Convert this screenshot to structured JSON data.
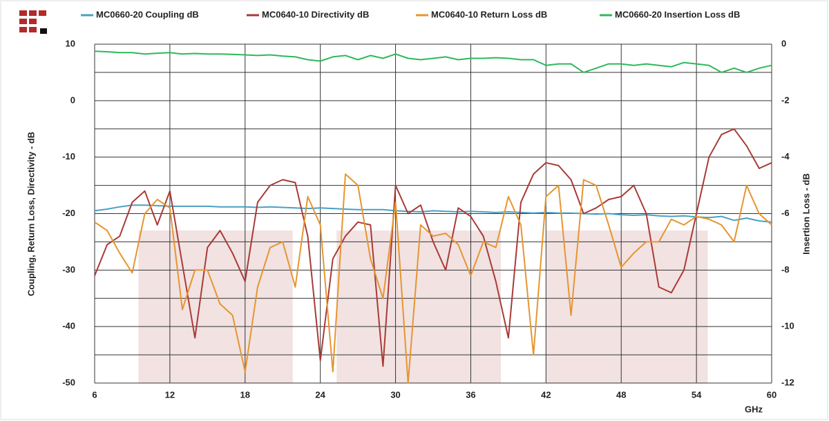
{
  "chart_data": {
    "type": "line",
    "x": [
      6,
      7,
      8,
      9,
      10,
      11,
      12,
      13,
      14,
      15,
      16,
      17,
      18,
      19,
      20,
      21,
      22,
      23,
      24,
      25,
      26,
      27,
      28,
      29,
      30,
      31,
      32,
      33,
      34,
      35,
      36,
      37,
      38,
      39,
      40,
      41,
      42,
      43,
      44,
      45,
      46,
      47,
      48,
      49,
      50,
      51,
      52,
      53,
      54,
      55,
      56,
      57,
      58,
      59,
      60
    ],
    "xlim": [
      6,
      60
    ],
    "xticks": [
      6,
      12,
      18,
      24,
      30,
      36,
      42,
      48,
      54,
      60
    ],
    "xlabel": "GHz",
    "ylim": [
      -50,
      10
    ],
    "yticks": [
      10,
      0,
      -10,
      -20,
      -30,
      -40,
      -50
    ],
    "y_minor_grid": [
      5,
      -5,
      -15,
      -25,
      -35,
      -45
    ],
    "ylabel": "Coupling, Return Loss, Directivity - dB",
    "y2lim": [
      -12,
      0
    ],
    "y2ticks": [
      0,
      -2,
      -4,
      -6,
      -8,
      -10,
      -12
    ],
    "y2label": "Insertion Loss - dB",
    "grid": true,
    "shaded_regions": [
      {
        "x": [
          9.5,
          21.8
        ],
        "y": [
          -23,
          -50
        ]
      },
      {
        "x": [
          25.3,
          38.4
        ],
        "y": [
          -23,
          -50
        ]
      },
      {
        "x": [
          42,
          54.9
        ],
        "y": [
          -23,
          -50
        ]
      }
    ],
    "shade_color": "#f2e2e2",
    "series": [
      {
        "name": "MC0660-20 Coupling dB",
        "color": "#4a9fc4",
        "values": [
          -19.5,
          -19.2,
          -18.8,
          -18.5,
          -18.5,
          -18.6,
          -18.7,
          -18.7,
          -18.7,
          -18.7,
          -18.8,
          -18.8,
          -18.8,
          -18.9,
          -18.8,
          -18.9,
          -19.0,
          -19.1,
          -19.0,
          -19.1,
          -19.2,
          -19.3,
          -19.3,
          -19.3,
          -19.5,
          -19.6,
          -19.7,
          -19.5,
          -19.6,
          -19.7,
          -19.6,
          -19.7,
          -19.8,
          -19.7,
          -19.8,
          -19.9,
          -19.8,
          -19.9,
          -19.9,
          -20.0,
          -20.1,
          -20.0,
          -20.2,
          -20.3,
          -20.2,
          -20.4,
          -20.5,
          -20.4,
          -20.6,
          -20.7,
          -20.5,
          -21.2,
          -20.8,
          -21.3,
          -21.5
        ]
      },
      {
        "name": "MC0640-10 Directivity dB",
        "color": "#a83a35",
        "values": [
          -31,
          -25.5,
          -24,
          -18,
          -16,
          -22,
          -16,
          -29,
          -42,
          -26,
          -23,
          -27,
          -32,
          -18,
          -15,
          -14,
          -14.5,
          -24,
          -46,
          -28,
          -24,
          -21.5,
          -22,
          -47,
          -15,
          -20,
          -18.5,
          -25,
          -30,
          -19,
          -20.5,
          -24,
          -32,
          -42,
          -18,
          -13,
          -11,
          -11.5,
          -14,
          -20,
          -19,
          -17.5,
          -17,
          -15,
          -20,
          -33,
          -34,
          -30,
          -20,
          -10,
          -6,
          -5,
          -8,
          -12,
          -11
        ]
      },
      {
        "name": "MC0640-10 Return Loss dB",
        "color": "#e5952f",
        "values": [
          -21.5,
          -23,
          -27,
          -30.5,
          -20,
          -17.5,
          -19,
          -37,
          -30,
          -30,
          -36,
          -38,
          -48,
          -33,
          -26,
          -25,
          -33,
          -17,
          -22,
          -48,
          -13,
          -15,
          -28,
          -35,
          -18,
          -50,
          -22,
          -24,
          -23.5,
          -25.5,
          -31,
          -25,
          -26,
          -17,
          -22,
          -45,
          -17,
          -15,
          -38,
          -14,
          -15,
          -22,
          -29.5,
          -27,
          -25,
          -25,
          -21,
          -22,
          -20.5,
          -21,
          -22,
          -25,
          -15,
          -20,
          -22
        ]
      },
      {
        "name": "MC0660-20 Insertion Loss dB",
        "color": "#2db85a",
        "axis": "y2",
        "values": [
          -0.25,
          -0.27,
          -0.3,
          -0.3,
          -0.35,
          -0.32,
          -0.3,
          -0.35,
          -0.33,
          -0.35,
          -0.35,
          -0.36,
          -0.38,
          -0.4,
          -0.38,
          -0.42,
          -0.45,
          -0.55,
          -0.6,
          -0.45,
          -0.4,
          -0.55,
          -0.4,
          -0.5,
          -0.35,
          -0.5,
          -0.55,
          -0.5,
          -0.45,
          -0.55,
          -0.5,
          -0.5,
          -0.48,
          -0.5,
          -0.55,
          -0.55,
          -0.75,
          -0.7,
          -0.7,
          -1.0,
          -0.85,
          -0.7,
          -0.7,
          -0.75,
          -0.7,
          -0.75,
          -0.8,
          -0.65,
          -0.7,
          -0.75,
          -1.0,
          -0.85,
          -1.0,
          -0.85,
          -0.75
        ]
      }
    ]
  }
}
